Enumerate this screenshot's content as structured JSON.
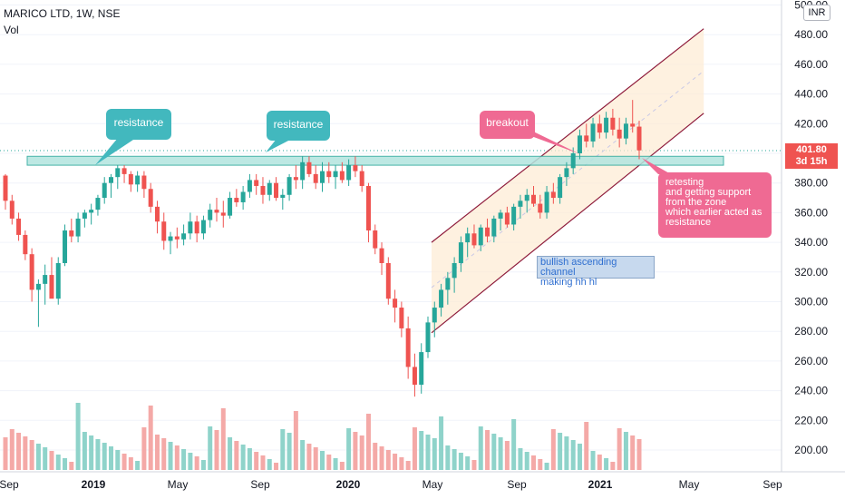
{
  "header": {
    "title": "MARICO LTD, 1W, NSE",
    "volume_label": "Vol"
  },
  "currency_button": "INR",
  "price_tag": {
    "price": "401.80",
    "countdown": "3d 15h"
  },
  "annotations": {
    "resistance_1": "resistance",
    "resistance_2": "resistance",
    "breakout": "breakout",
    "retesting_lines": [
      "retesting",
      "and getting support",
      "from the zone",
      "which earlier acted as",
      "resistance"
    ],
    "channel_lines": [
      "bullish ascending channel",
      "making hh hl"
    ]
  },
  "colors": {
    "up": "#26a69a",
    "down": "#ef5350",
    "vol_up": "#8fd3ca",
    "vol_down": "#f4a9a7",
    "zone_fill": "#b2e5df",
    "zone_border": "#26a69a",
    "channel_line": "#8e1b3b",
    "channel_fill": "#fdebd3",
    "callout_teal": "#42b8be",
    "callout_pink": "#ef6a93"
  },
  "chart_data": {
    "type": "candlestick",
    "y_axis": {
      "ylim": [
        190,
        502
      ],
      "ticks": [
        200,
        220,
        240,
        260,
        280,
        300,
        320,
        340,
        360,
        380,
        400,
        420,
        440,
        460,
        480,
        500
      ],
      "tick_labels": [
        "200.00",
        "220.00",
        "240.00",
        "260.00",
        "280.00",
        "300.00",
        "320.00",
        "340.00",
        "360.00",
        "380.00",
        "400.00",
        "420.00",
        "440.00",
        "460.00",
        "480.00",
        "500.00"
      ]
    },
    "x_axis": {
      "labels": [
        "Sep",
        "2019",
        "May",
        "Sep",
        "2020",
        "May",
        "Sep",
        "2021",
        "May",
        "Sep"
      ]
    },
    "resistance_zone": [
      392,
      398
    ],
    "channel": {
      "upper": [
        {
          "week": 0,
          "price": 340
        },
        {
          "week": 67,
          "price": 484
        }
      ],
      "lower": [
        {
          "week": 0,
          "price": 279
        },
        {
          "week": 67,
          "price": 427
        }
      ]
    },
    "ohlc": [
      [
        385,
        386,
        362,
        368
      ],
      [
        368,
        372,
        352,
        356
      ],
      [
        356,
        360,
        341,
        345
      ],
      [
        345,
        348,
        328,
        332
      ],
      [
        332,
        336,
        300,
        308
      ],
      [
        308,
        315,
        283,
        312
      ],
      [
        312,
        325,
        298,
        318
      ],
      [
        318,
        330,
        305,
        302
      ],
      [
        302,
        330,
        298,
        326
      ],
      [
        326,
        352,
        324,
        348
      ],
      [
        348,
        356,
        340,
        344
      ],
      [
        344,
        360,
        340,
        356
      ],
      [
        356,
        362,
        350,
        360
      ],
      [
        360,
        366,
        352,
        362
      ],
      [
        362,
        372,
        358,
        370
      ],
      [
        370,
        384,
        366,
        380
      ],
      [
        380,
        386,
        370,
        384
      ],
      [
        384,
        392,
        376,
        390
      ],
      [
        390,
        392,
        380,
        386
      ],
      [
        386,
        388,
        374,
        379
      ],
      [
        379,
        388,
        374,
        385
      ],
      [
        385,
        388,
        370,
        376
      ],
      [
        376,
        380,
        360,
        364
      ],
      [
        364,
        368,
        346,
        354
      ],
      [
        354,
        360,
        335,
        341
      ],
      [
        341,
        347,
        332,
        344
      ],
      [
        344,
        350,
        336,
        342
      ],
      [
        342,
        352,
        338,
        346
      ],
      [
        346,
        360,
        342,
        354
      ],
      [
        354,
        358,
        340,
        346
      ],
      [
        346,
        358,
        342,
        355
      ],
      [
        355,
        366,
        350,
        362
      ],
      [
        362,
        370,
        354,
        360
      ],
      [
        360,
        368,
        350,
        358
      ],
      [
        358,
        374,
        356,
        370
      ],
      [
        370,
        376,
        364,
        367
      ],
      [
        367,
        378,
        362,
        374
      ],
      [
        374,
        386,
        370,
        382
      ],
      [
        382,
        386,
        372,
        378
      ],
      [
        378,
        384,
        366,
        372
      ],
      [
        372,
        382,
        368,
        380
      ],
      [
        380,
        384,
        368,
        370
      ],
      [
        370,
        376,
        362,
        372
      ],
      [
        372,
        386,
        368,
        384
      ],
      [
        384,
        392,
        376,
        382
      ],
      [
        382,
        398,
        376,
        394
      ],
      [
        394,
        398,
        384,
        386
      ],
      [
        386,
        392,
        376,
        380
      ],
      [
        380,
        394,
        374,
        388
      ],
      [
        388,
        394,
        380,
        384
      ],
      [
        384,
        392,
        376,
        388
      ],
      [
        388,
        394,
        380,
        382
      ],
      [
        382,
        396,
        378,
        392
      ],
      [
        392,
        398,
        384,
        388
      ],
      [
        388,
        392,
        374,
        378
      ]
    ]
  }
}
